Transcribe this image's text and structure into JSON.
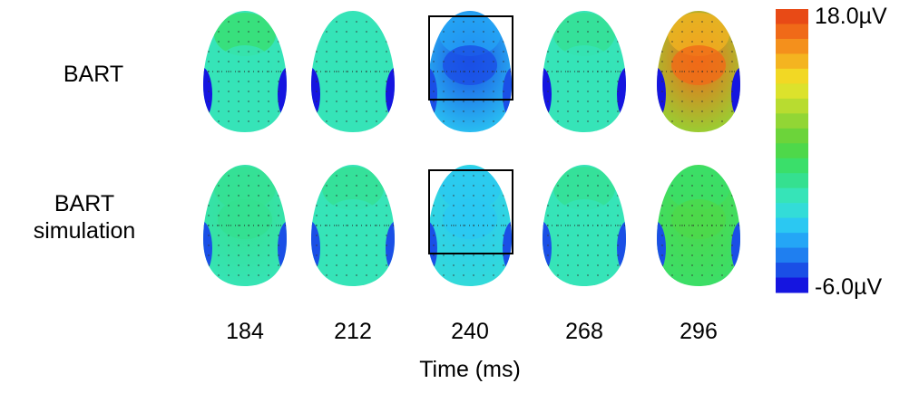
{
  "rows": [
    {
      "label_lines": [
        "BART"
      ],
      "maps": [
        {
          "frontal": 0.45,
          "central": 0.36,
          "parietal": 0.34,
          "temporal_edge": 0.0
        },
        {
          "frontal": 0.33,
          "central": 0.31,
          "parietal": 0.31,
          "temporal_edge": 0.0
        },
        {
          "frontal": 0.14,
          "central": 0.06,
          "parietal": 0.22,
          "temporal_edge": 0.05,
          "highlighted": true
        },
        {
          "frontal": 0.37,
          "central": 0.35,
          "parietal": 0.34,
          "temporal_edge": 0.0
        },
        {
          "frontal": 0.82,
          "central": 0.92,
          "parietal": 0.62,
          "temporal_edge": 0.0
        }
      ]
    },
    {
      "label_lines": [
        "BART",
        "simulation"
      ],
      "maps": [
        {
          "frontal": 0.4,
          "central": 0.38,
          "parietal": 0.36,
          "temporal_edge": 0.05
        },
        {
          "frontal": 0.37,
          "central": 0.36,
          "parietal": 0.35,
          "temporal_edge": 0.05
        },
        {
          "frontal": 0.24,
          "central": 0.22,
          "parietal": 0.3,
          "temporal_edge": 0.05,
          "highlighted": true
        },
        {
          "frontal": 0.38,
          "central": 0.36,
          "parietal": 0.36,
          "temporal_edge": 0.05
        },
        {
          "frontal": 0.44,
          "central": 0.5,
          "parietal": 0.46,
          "temporal_edge": 0.05
        }
      ]
    }
  ],
  "time_points": [
    "184",
    "212",
    "240",
    "268",
    "296"
  ],
  "x_axis_label": "Time (ms)",
  "colorbar": {
    "max_label": "18.0µV",
    "min_label": "-6.0µV",
    "max_value": 18.0,
    "min_value": -6.0,
    "colors": [
      "#1515e0",
      "#1a4fe6",
      "#1f7ff0",
      "#24a6f6",
      "#2bc8f2",
      "#33dcd8",
      "#36e4b8",
      "#35e090",
      "#3adf6a",
      "#4ed84a",
      "#6cd43a",
      "#92d635",
      "#b8dc30",
      "#dce22c",
      "#f2d824",
      "#f4b420",
      "#f4901c",
      "#f06a18",
      "#e84a16"
    ]
  }
}
